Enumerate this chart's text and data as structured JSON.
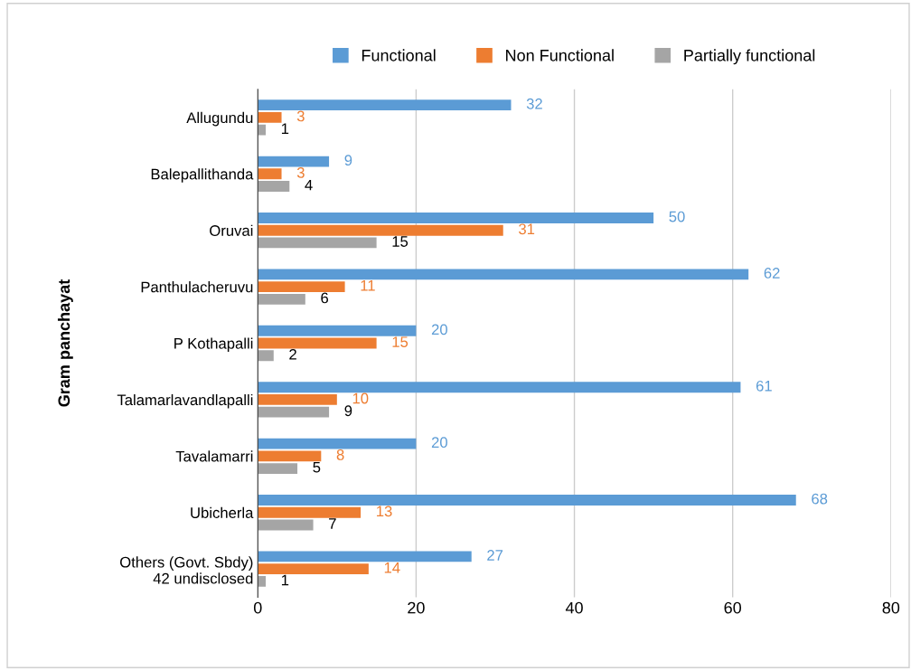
{
  "chart_data": {
    "type": "bar",
    "orientation": "horizontal",
    "ylabel": "Gram panchayat",
    "categories": [
      "Allugundu",
      "Balepallithanda",
      "Oruvai",
      "Panthulacheruvu",
      "P Kothapalli",
      "Talamarlavandlapalli",
      "Tavalamarri",
      "Ubicherla",
      "Others (Govt. Sbdy)\n42 undisclosed"
    ],
    "series": [
      {
        "name": "Functional",
        "color": "#5b9bd5",
        "values": [
          32,
          9,
          50,
          62,
          20,
          61,
          20,
          68,
          27
        ]
      },
      {
        "name": "Non Functional",
        "color": "#ed7d31",
        "values": [
          3,
          3,
          31,
          11,
          15,
          10,
          8,
          13,
          14
        ]
      },
      {
        "name": "Partially functional",
        "color": "#a5a5a5",
        "values": [
          1,
          4,
          15,
          6,
          2,
          9,
          5,
          7,
          1
        ]
      }
    ],
    "xlim": [
      0,
      80
    ],
    "xticks": [
      0,
      20,
      40,
      60,
      80
    ],
    "grid": "x",
    "legend": "top",
    "data_labels": true
  }
}
